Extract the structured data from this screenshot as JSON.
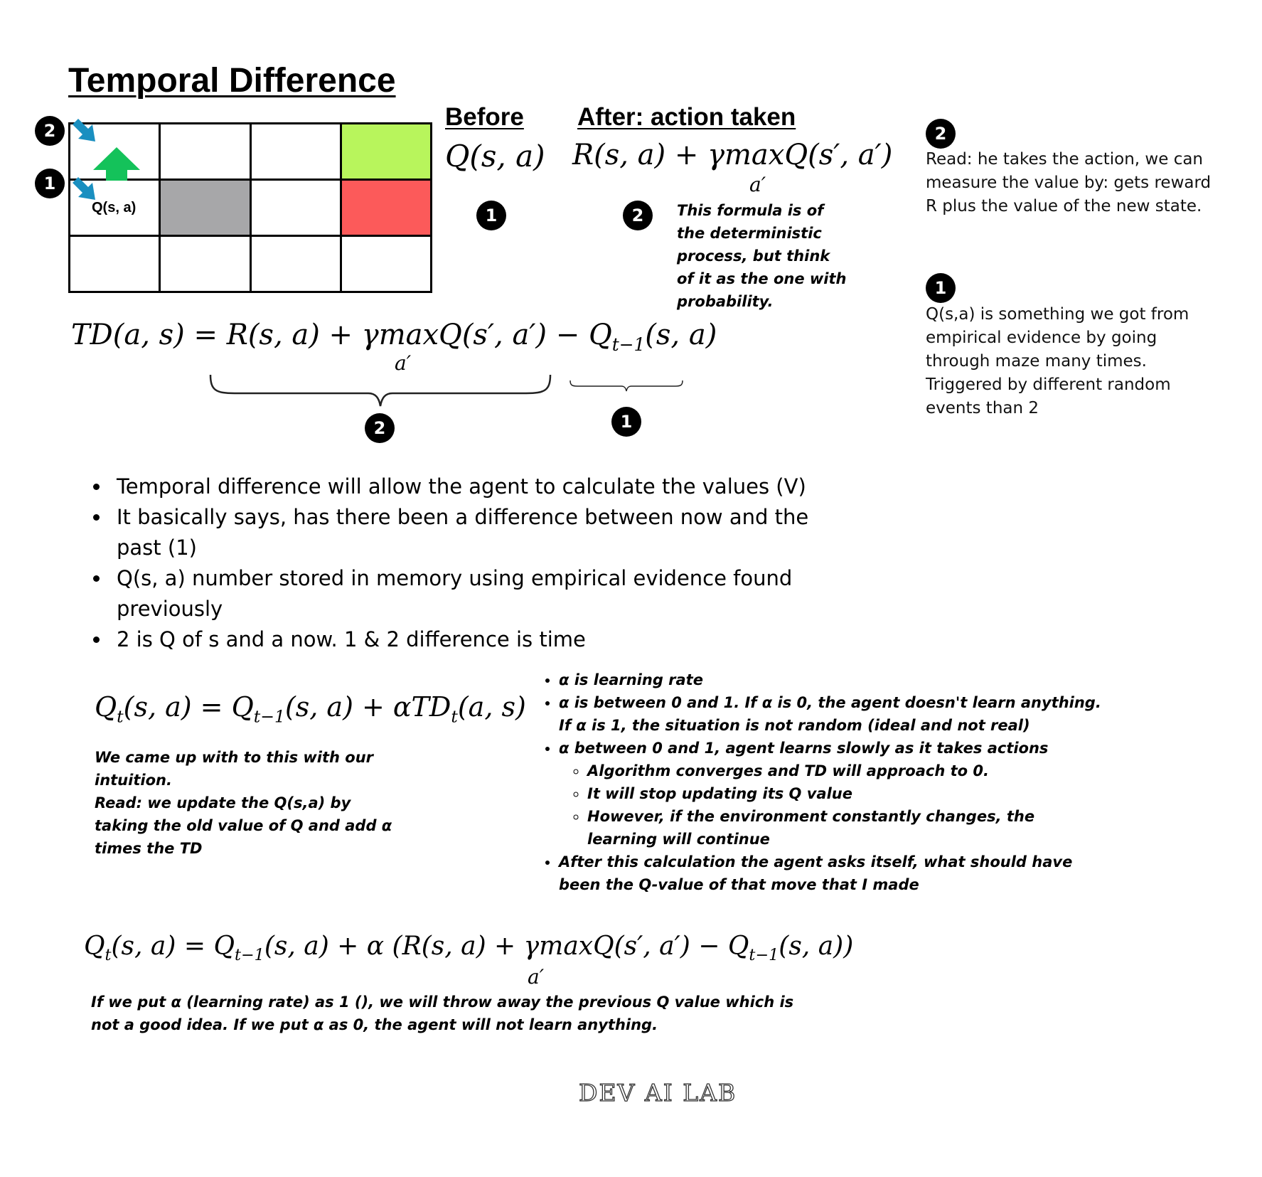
{
  "title": "Temporal Difference",
  "grid": {
    "cell_label": "Q(s, a)",
    "colors": {
      "goal": "#b8f55c",
      "danger": "#fc5a5a",
      "wall": "#a7a7a9",
      "arrow_up": "#14c25a",
      "arrow_pointer": "#1a8fc0"
    },
    "badges": [
      "2",
      "1"
    ]
  },
  "before": {
    "heading": "Before",
    "formula": "Q(s, a)",
    "badge": "1"
  },
  "after": {
    "heading": "After: action taken",
    "formula_main": "R(s, a) + γmaxQ(s′, a′)",
    "formula_sub": "a′",
    "badge": "2",
    "note": "This formula is of the deterministic process, but think of it as the one with probability."
  },
  "side_notes": [
    {
      "badge": "2",
      "text": "Read: he takes the action, we can measure the value by: gets reward R plus the value of the new state."
    },
    {
      "badge": "1",
      "text": "Q(s,a) is something we got from empirical evidence by going through maze many times. Triggered by different random events than 2"
    }
  ],
  "td_formula": {
    "main": "TD(a, s) = R(s, a) + γmaxQ(s′, a′) − Q",
    "sub_t": "t−1",
    "tail": "(s, a)",
    "under": "a′",
    "brace_badges": [
      "2",
      "1"
    ]
  },
  "bullets": [
    "Temporal difference will allow the agent to calculate the values (V)",
    "It basically says, has there been a difference between now and the past (1)",
    "Q(s, a) number stored in memory using empirical evidence found previously",
    "2 is Q of s and a now. 1 & 2 difference is time"
  ],
  "update_formula": {
    "q": "Q",
    "t": "t",
    "p1": "(s, a) = Q",
    "tm1": "t−1",
    "p2": "(s, a) + αTD",
    "t2": "t",
    "p3": "(a, s)",
    "note": "We came up with to this with our intuition.\nRead: we update the Q(s,a) by taking the old value of Q and add α times the TD"
  },
  "alpha_notes": {
    "items": [
      "α is learning rate",
      "α is between 0 and 1. If α is 0, the agent doesn't learn anything. If α is 1, the situation is not random (ideal and not real)",
      "α between 0 and 1, agent learns slowly as it takes actions",
      "After this calculation the agent asks itself, what should have been the Q-value of that move that I made"
    ],
    "sub_items": [
      "Algorithm converges and TD will approach to 0.",
      "It will stop updating its Q value",
      "However, if the environment constantly changes, the learning will continue"
    ]
  },
  "full_formula": {
    "q": "Q",
    "t": "t",
    "p1": "(s, a) = Q",
    "tm1": "t−1",
    "p2": "(s, a) + α (R(s, a) + γmaxQ(s′, a′) − Q",
    "tm1b": "t−1",
    "p3": "(s, a))",
    "under": "a′",
    "note": "If we put α (learning rate) as 1 (), we will throw away the previous Q value which is not a good idea. If we put α as 0, the agent will not learn anything."
  },
  "footer": "DEV AI LAB"
}
